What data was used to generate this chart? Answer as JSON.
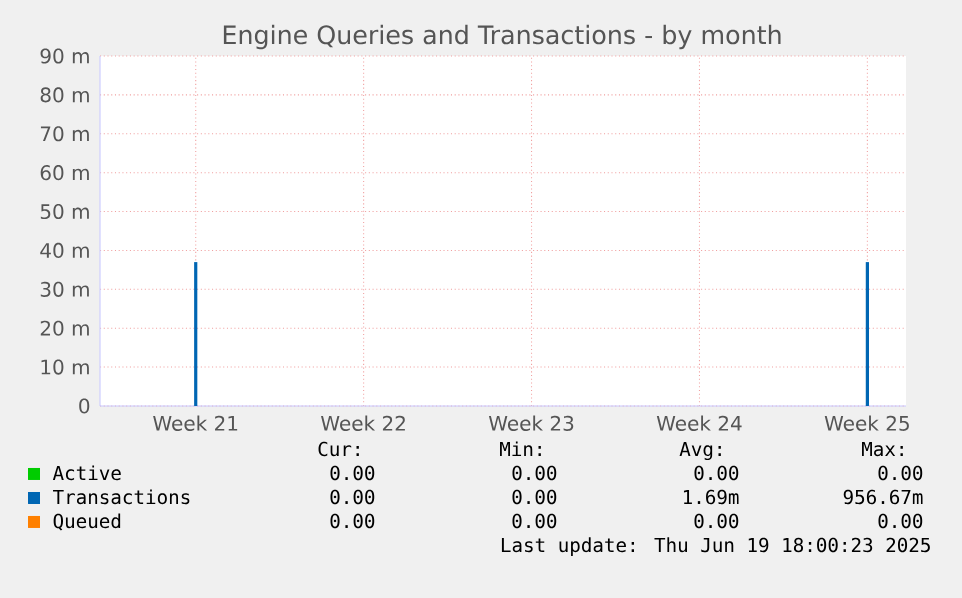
{
  "chart_data": {
    "type": "bar",
    "title": "Engine Queries and Transactions - by month",
    "categories": [
      "Week 21",
      "Week 22",
      "Week 23",
      "Week 24",
      "Week 25"
    ],
    "ylim": [
      0,
      90
    ],
    "yticks": [
      {
        "value": 0,
        "label": "0"
      },
      {
        "value": 10,
        "label": "10 m"
      },
      {
        "value": 20,
        "label": "20 m"
      },
      {
        "value": 30,
        "label": "30 m"
      },
      {
        "value": 40,
        "label": "40 m"
      },
      {
        "value": 50,
        "label": "50 m"
      },
      {
        "value": 60,
        "label": "60 m"
      },
      {
        "value": 70,
        "label": "70 m"
      },
      {
        "value": 80,
        "label": "80 m"
      },
      {
        "value": 90,
        "label": "90 m"
      }
    ],
    "grid": true,
    "legend": "bottom",
    "series": [
      {
        "name": "Active",
        "color": "#00cc00",
        "values": [
          0,
          0,
          0,
          0,
          0
        ]
      },
      {
        "name": "Transactions",
        "color": "#0066b3",
        "values": [
          37,
          0,
          0,
          0,
          37
        ]
      },
      {
        "name": "Queued",
        "color": "#ff8000",
        "values": [
          0,
          0,
          0,
          0,
          0
        ]
      }
    ],
    "annotations": [
      "Cur:",
      "Min:",
      "Avg:",
      "Max:",
      "0.00",
      "0.00",
      "0.00",
      "0.00",
      "0.00",
      "0.00",
      "1.69m",
      "956.67m",
      "0.00",
      "0.00",
      "0.00",
      "0.00",
      "Last update: Thu Jun 19 18:00:23 2025"
    ]
  }
}
